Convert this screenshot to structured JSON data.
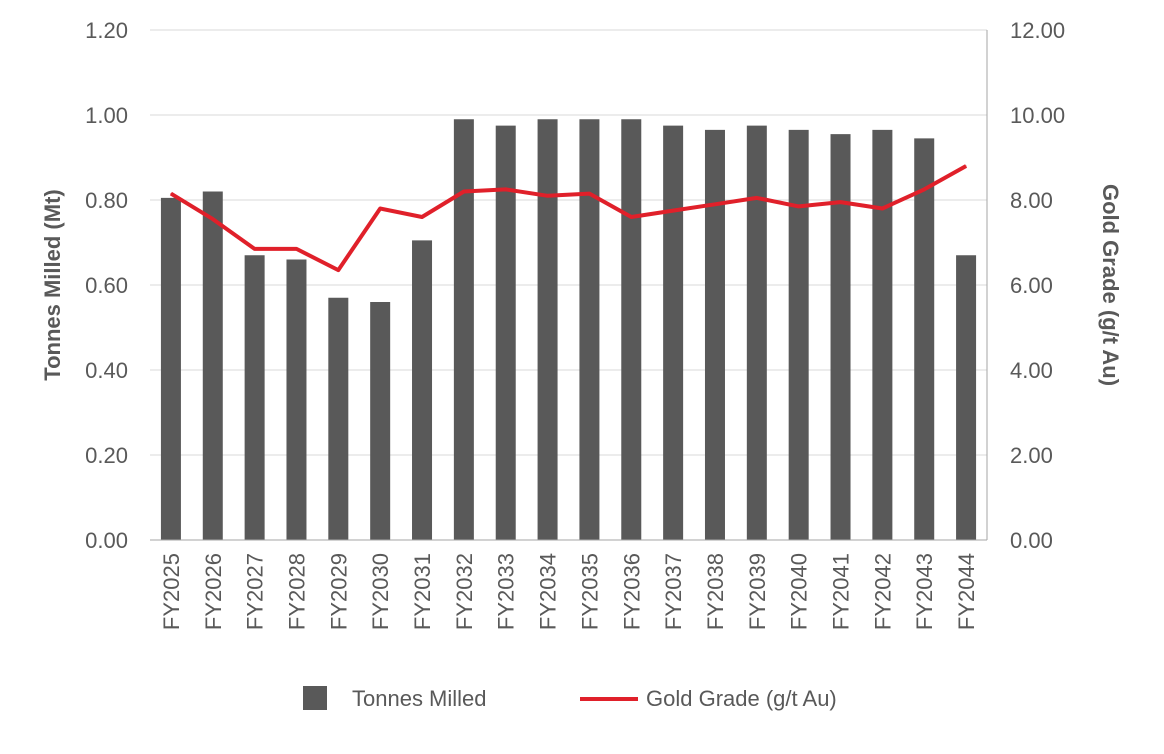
{
  "chart_data": {
    "type": "bar",
    "categories": [
      "FY2025",
      "FY2026",
      "FY2027",
      "FY2028",
      "FY2029",
      "FY2030",
      "FY2031",
      "FY2032",
      "FY2033",
      "FY2034",
      "FY2035",
      "FY2036",
      "FY2037",
      "FY2038",
      "FY2039",
      "FY2040",
      "FY2041",
      "FY2042",
      "FY2043",
      "FY2044"
    ],
    "series": [
      {
        "name": "Tonnes Milled",
        "type": "bar",
        "axis": "left",
        "color": "#595959",
        "values": [
          0.805,
          0.82,
          0.67,
          0.66,
          0.57,
          0.56,
          0.705,
          0.99,
          0.975,
          0.99,
          0.99,
          0.99,
          0.975,
          0.965,
          0.975,
          0.965,
          0.955,
          0.965,
          0.945,
          0.67
        ]
      },
      {
        "name": "Gold Grade (g/t Au)",
        "type": "line",
        "axis": "right",
        "color": "#e0202a",
        "values": [
          8.15,
          7.55,
          6.85,
          6.85,
          6.35,
          7.8,
          7.6,
          8.2,
          8.25,
          8.1,
          8.15,
          7.6,
          7.75,
          7.9,
          8.05,
          7.85,
          7.95,
          7.8,
          8.25,
          8.8
        ]
      }
    ],
    "ylabel": "Tonnes Milled (Mt)",
    "y2label": "Gold Grade (g/t Au)",
    "ylim": [
      0,
      1.2
    ],
    "y2lim": [
      0,
      12
    ],
    "yticks": [
      "0.00",
      "0.20",
      "0.40",
      "0.60",
      "0.80",
      "1.00",
      "1.20"
    ],
    "y2ticks": [
      "0.00",
      "2.00",
      "4.00",
      "6.00",
      "8.00",
      "10.00",
      "12.00"
    ],
    "grid": true,
    "legend": {
      "position": "bottom",
      "items": [
        "Tonnes Milled",
        "Gold Grade (g/t Au)"
      ]
    }
  }
}
